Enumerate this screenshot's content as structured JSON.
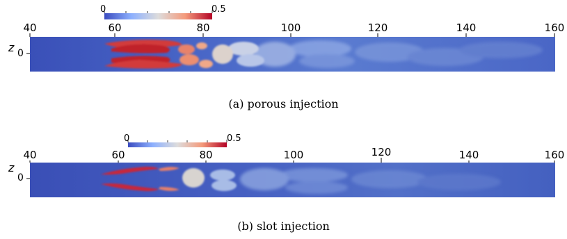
{
  "axis": {
    "x_ticks": [
      "40",
      "60",
      "80",
      "100",
      "120",
      "140",
      "160"
    ],
    "z_label": "z",
    "z_tick": "0"
  },
  "colorbar": {
    "min_label": "0",
    "max_label": "0.5"
  },
  "panels": [
    {
      "caption": "(a) porous injection"
    },
    {
      "caption": "(b) slot injection"
    }
  ],
  "colors": {
    "low": "#3b4cc0",
    "mid": "#dddcdc",
    "high": "#b40426",
    "background_field": "#3a56b8"
  }
}
